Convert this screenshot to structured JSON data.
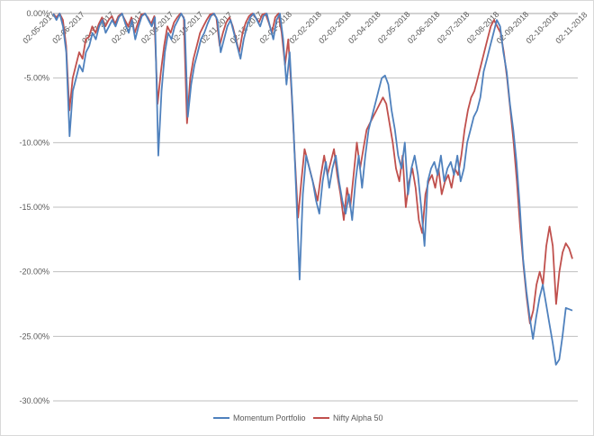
{
  "chart_data": {
    "type": "line",
    "title": "",
    "xlabel": "",
    "ylabel": "",
    "ylim": [
      -30,
      0
    ],
    "yticks": [
      "0.00%",
      "-5.00%",
      "-10.00%",
      "-15.00%",
      "-20.00%",
      "-25.00%",
      "-30.00%"
    ],
    "ytick_values": [
      0,
      -5,
      -10,
      -15,
      -20,
      -25,
      -30
    ],
    "x_ticks": [
      "02-05-2017",
      "02-06-2017",
      "02-07-2017",
      "02-08-2017",
      "02-09-2017",
      "02-10-2017",
      "02-11-2017",
      "02-12-2017",
      "02-01-2018",
      "02-02-2018",
      "02-03-2018",
      "02-04-2018",
      "02-05-2018",
      "02-06-2018",
      "02-07-2018",
      "02-08-2018",
      "02-09-2018",
      "02-10-2018",
      "02-11-2018"
    ],
    "grid": true,
    "legend_position": "bottom",
    "series": [
      {
        "name": "Momentum Portfolio",
        "color": "#4f81bd",
        "values": [
          0,
          -0.5,
          0,
          -1,
          -3,
          -9.5,
          -6,
          -5,
          -4,
          -4.5,
          -3,
          -2.5,
          -1.5,
          -2,
          -1,
          -0.5,
          -1.5,
          -1,
          -0.5,
          -1,
          -0.3,
          0,
          -0.8,
          -1.5,
          -0.5,
          -2,
          -1,
          -0.2,
          0,
          -0.5,
          -1,
          -0.3,
          -11,
          -6,
          -3,
          -1.5,
          -2,
          -1,
          -0.5,
          0,
          -0.5,
          -8,
          -5.5,
          -4,
          -3,
          -2,
          -1.5,
          -0.8,
          -0.2,
          0,
          -0.5,
          -3,
          -2,
          -1,
          -0.5,
          -1.5,
          -2.5,
          -3.5,
          -2,
          -1,
          -0.3,
          0,
          -0.5,
          -1,
          -0.2,
          0,
          -1,
          -2,
          -0.5,
          0,
          -2,
          -5.5,
          -3,
          -8,
          -14,
          -20.6,
          -14,
          -11,
          -12,
          -13,
          -14.5,
          -15.5,
          -13,
          -11.5,
          -13.5,
          -12,
          -11,
          -13,
          -14.5,
          -15.5,
          -14,
          -16,
          -13,
          -11,
          -13.5,
          -11,
          -9,
          -8,
          -7,
          -6,
          -5,
          -4.8,
          -5.5,
          -7.5,
          -9,
          -11,
          -12,
          -10,
          -14,
          -12,
          -11,
          -12.5,
          -15,
          -18,
          -13,
          -12,
          -11.5,
          -12.5,
          -11,
          -13,
          -12,
          -11.5,
          -12.5,
          -11,
          -13,
          -12,
          -10,
          -9,
          -8,
          -7.5,
          -6.5,
          -4.5,
          -3.5,
          -2.5,
          -1.5,
          -0.5,
          -1,
          -3,
          -4.5,
          -7,
          -9,
          -11.5,
          -15,
          -19,
          -21.5,
          -23.5,
          -25.2,
          -23.5,
          -22,
          -21,
          -22.5,
          -24,
          -25.5,
          -27.2,
          -26.8,
          -25,
          -22.8,
          -22.9,
          -23
        ]
      },
      {
        "name": "Nifty Alpha 50",
        "color": "#c0504d",
        "values": [
          0,
          -0.3,
          0,
          -0.5,
          -2.5,
          -7.5,
          -5,
          -4,
          -3,
          -3.5,
          -2,
          -1.8,
          -1,
          -1.5,
          -0.8,
          -0.3,
          -1,
          -0.5,
          -0.2,
          -0.8,
          -0.2,
          0,
          -0.5,
          -1,
          -0.3,
          -1.5,
          -0.7,
          -0.1,
          0,
          -0.3,
          -0.8,
          -0.2,
          -7,
          -4.5,
          -2.5,
          -1,
          -1.5,
          -0.7,
          -0.3,
          0,
          -0.3,
          -8.5,
          -5,
          -3.5,
          -2.5,
          -1.5,
          -1,
          -0.5,
          -0.1,
          0,
          -0.3,
          -2.5,
          -1.5,
          -0.7,
          -0.3,
          -1,
          -2,
          -3,
          -1.5,
          -0.7,
          -0.2,
          0,
          -0.3,
          -0.7,
          -0.1,
          0,
          -0.7,
          -1.5,
          -0.3,
          0,
          -1.5,
          -4,
          -2,
          -6,
          -11,
          -15.8,
          -13,
          -10.5,
          -11.5,
          -12.5,
          -13.5,
          -14.5,
          -12.5,
          -11,
          -12.5,
          -11.5,
          -10.5,
          -12.5,
          -14,
          -16,
          -13.5,
          -15,
          -12.5,
          -10,
          -12,
          -10.5,
          -9,
          -8.5,
          -8,
          -7.5,
          -7,
          -6.5,
          -7,
          -8.5,
          -10,
          -12,
          -13,
          -11,
          -15,
          -13,
          -12,
          -13.5,
          -16,
          -17,
          -14,
          -13,
          -12.5,
          -13.5,
          -12,
          -14,
          -13,
          -12.5,
          -13.5,
          -12,
          -12.5,
          -11,
          -9,
          -7.5,
          -6.5,
          -6,
          -5,
          -4,
          -3,
          -2,
          -1,
          -0.5,
          -1,
          -1.5,
          -3,
          -5,
          -7.5,
          -10,
          -13,
          -16.5,
          -19.5,
          -22,
          -24,
          -23,
          -21,
          -20,
          -21,
          -18,
          -16.5,
          -18,
          -22.5,
          -20,
          -18.5,
          -17.8,
          -18.2,
          -19
        ]
      }
    ]
  }
}
